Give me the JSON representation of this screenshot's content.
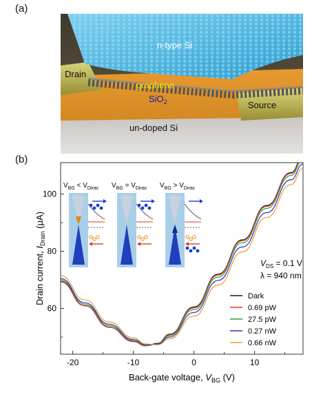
{
  "panel_a": {
    "label": "(a)",
    "labels": {
      "n_si": "n-type Si",
      "drain": "Drain",
      "graphene": "graphene",
      "sio2_base": "SiO",
      "sio2_sub": "2",
      "source": "Source",
      "undoped": "un-doped Si"
    }
  },
  "panel_b": {
    "label": "(b)",
    "insets": [
      {
        "v1": "V",
        "s1": "BG",
        "rel": " < V",
        "s2": "Dirac"
      },
      {
        "v1": "V",
        "s1": "BG",
        "rel": " = V",
        "s2": "Dirac"
      },
      {
        "v1": "V",
        "s1": "BG",
        "rel": " > V",
        "s2": "Dirac"
      }
    ],
    "conditions": {
      "vds_italic": "V",
      "vds_sub": "DS",
      "vds_value": " = 0.1 V",
      "lambda_text": "λ = 940 nm"
    },
    "y_label": {
      "pre": "Drain current, ",
      "italic": "I",
      "sub": "Drain",
      "post": " (μA)"
    },
    "x_label": {
      "pre": "Back-gate voltage, ",
      "italic": "V",
      "sub": "BG",
      "post": " (V)"
    }
  },
  "chart_data": {
    "type": "line",
    "xlabel": "Back-gate voltage, VBG (V)",
    "ylabel": "Drain current, IDrain (μA)",
    "xlim": [
      -22,
      18
    ],
    "ylim": [
      44,
      111
    ],
    "x_ticks": [
      -20,
      -10,
      0,
      10
    ],
    "y_ticks": [
      60,
      80,
      100
    ],
    "legend_position": "bottom-right",
    "series": [
      {
        "name": "Dark",
        "color": "#1a1a1a",
        "x": [
          -22,
          -18,
          -14,
          -10,
          -8,
          -6,
          -4,
          0,
          4,
          8,
          12,
          16,
          18
        ],
        "y": [
          69.5,
          61,
          53.5,
          48.5,
          47,
          47.8,
          51,
          60.5,
          72,
          84,
          96,
          107.5,
          113
        ]
      },
      {
        "name": "0.69 pW",
        "color": "#e03a2e",
        "x": [
          -22,
          -18,
          -14,
          -10,
          -8,
          -6,
          -4,
          0,
          4,
          8,
          12,
          16,
          18
        ],
        "y": [
          69.3,
          60.9,
          53.4,
          48.4,
          46.9,
          47.6,
          50.8,
          60.2,
          71.7,
          83.7,
          95.7,
          107.2,
          112.7
        ]
      },
      {
        "name": "27.5 pW",
        "color": "#2ea02e",
        "x": [
          -22,
          -18,
          -14,
          -10,
          -8,
          -6,
          -4,
          0,
          4,
          8,
          12,
          16,
          18
        ],
        "y": [
          70,
          61.5,
          54,
          48.8,
          47.1,
          47.6,
          50.5,
          59.6,
          71,
          83,
          95,
          106.5,
          112
        ]
      },
      {
        "name": "0.27 nW",
        "color": "#2b2bd8",
        "x": [
          -22,
          -18,
          -14,
          -10,
          -8,
          -6,
          -4,
          0,
          4,
          8,
          12,
          16,
          18
        ],
        "y": [
          70.5,
          62,
          54.5,
          49.2,
          47.3,
          47.5,
          50,
          58.6,
          69.8,
          81.5,
          93.5,
          105,
          110.5
        ]
      },
      {
        "name": "0.66 nW",
        "color": "#f0a020",
        "x": [
          -22,
          -18,
          -14,
          -10,
          -8,
          -6,
          -4,
          0,
          4,
          8,
          12,
          16,
          18
        ],
        "y": [
          71.5,
          63,
          55.3,
          49.8,
          47.6,
          47.3,
          49.4,
          57.3,
          68.2,
          79.8,
          91.8,
          103.3,
          109
        ]
      }
    ]
  }
}
